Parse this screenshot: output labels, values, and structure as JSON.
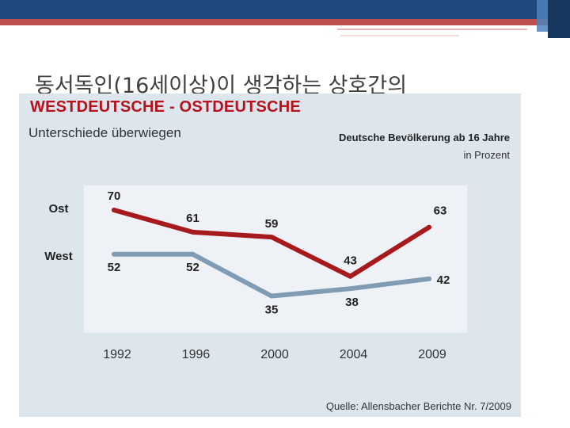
{
  "slide": {
    "title": "동서독인(16세이상)이 생각하는 상호간의"
  },
  "theme": {
    "band_color": "#1f497d",
    "stripe_color": "#c0504d",
    "panel_bg": "#dde5ed",
    "plot_bg": "#eef2f6",
    "ost_color": "#a61a1e",
    "west_color": "#7f9cb4",
    "headline_color": "#b7121b"
  },
  "chart_data": {
    "type": "line",
    "title": "WESTDEUTSCHE - OSTDEUTSCHE",
    "subtitle": "Unterschiede überwiegen",
    "caption": "Deutsche Bevölkerung ab 16 Jahre",
    "unit": "in Prozent",
    "source": "Quelle: Allensbacher Berichte Nr. 7/2009",
    "categories": [
      "1992",
      "1996",
      "2000",
      "2004",
      "2009"
    ],
    "series": [
      {
        "name": "Ost",
        "values": [
          70,
          61,
          59,
          43,
          63
        ]
      },
      {
        "name": "West",
        "values": [
          52,
          52,
          35,
          38,
          42
        ]
      }
    ],
    "ylim": [
      20,
      80
    ],
    "grid": false,
    "legend": "left"
  }
}
